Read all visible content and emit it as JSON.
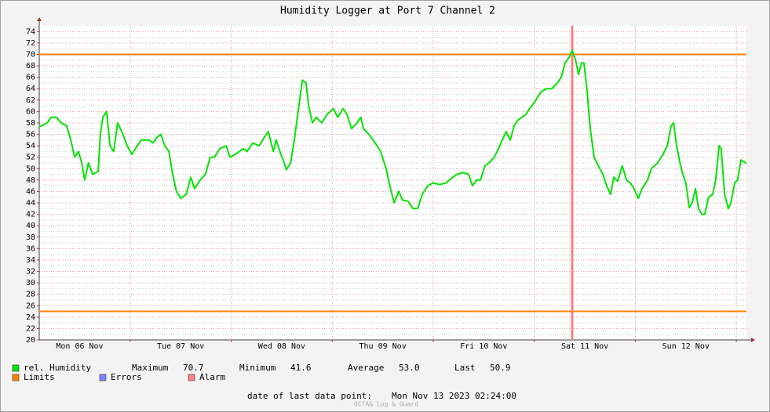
{
  "chart_data": {
    "type": "line",
    "title": "Humidity Logger at Port 7 Channel 2",
    "x": [
      0,
      1.9,
      2.8,
      4.1,
      5.2,
      6.5,
      7.5,
      8.4,
      9.3,
      10.1,
      10.8,
      11.7,
      12.7,
      14.0,
      14.5,
      15.1,
      16.0,
      16.8,
      17.7,
      18.6,
      19.6,
      20.9,
      22.0,
      23.3,
      24.2,
      26.1,
      27.0,
      28.0,
      28.9,
      29.8,
      30.8,
      31.7,
      32.6,
      33.6,
      34.9,
      36.0,
      36.9,
      38.2,
      39.5,
      40.6,
      41.6,
      42.9,
      44.4,
      45.3,
      46.6,
      48.5,
      49.4,
      50.7,
      52.2,
      53.5,
      54.4,
      55.6,
      56.3,
      57.4,
      58.2,
      58.7,
      59.7,
      60.6,
      61.5,
      62.5,
      63.4,
      64.0,
      64.9,
      65.8,
      67.1,
      68.4,
      69.9,
      70.9,
      72.2,
      73.1,
      74.2,
      75.5,
      76.4,
      77.0,
      78.3,
      79.8,
      81.1,
      82.4,
      83.3,
      84.3,
      85.4,
      86.3,
      87.6,
      88.8,
      89.9,
      91.0,
      92.3,
      93.6,
      95.1,
      96.6,
      97.9,
      99.2,
      100.7,
      102.0,
      102.9,
      103.9,
      104.8,
      105.9,
      106.8,
      108.1,
      109.1,
      110.0,
      110.9,
      111.9,
      112.8,
      113.7,
      114.7,
      115.6,
      116.5,
      117.5,
      118.4,
      119.3,
      120.5,
      121.8,
      123.1,
      124.0,
      124.9,
      125.9,
      126.6,
      127.4,
      128.1,
      128.8,
      129.4,
      130.1,
      130.9,
      131.8,
      132.8,
      133.9,
      134.8,
      135.7,
      136.5,
      137.4,
      138.5,
      139.5,
      140.4,
      141.3,
      142.3,
      143.2,
      144.5,
      145.4,
      146.9,
      148.2,
      149.2,
      150.1,
      150.7,
      151.4,
      152.2,
      152.9,
      153.6,
      154.4,
      155.1,
      155.9,
      156.6,
      157.4,
      158.1,
      159.0,
      160.0,
      160.7,
      161.5,
      162.0,
      162.8,
      163.7,
      164.3,
      165.2,
      165.9,
      166.7,
      167.4,
      168.0
    ],
    "series": [
      {
        "name": "rel. Humidity",
        "color": "#00e600",
        "values": [
          57.3,
          58,
          59,
          59,
          58,
          57.5,
          55,
          52,
          53,
          51,
          48,
          51,
          49,
          49.5,
          56,
          59,
          60,
          54,
          53,
          58,
          56.5,
          54,
          52.5,
          54,
          55,
          55,
          54.5,
          55.5,
          56,
          54,
          53,
          49,
          46,
          44.8,
          45.5,
          48.5,
          46.5,
          48,
          49,
          52,
          52,
          53.5,
          54,
          52,
          52.5,
          53.5,
          53,
          54.5,
          54,
          55.5,
          56.5,
          53,
          55,
          52.5,
          51,
          49.8,
          51,
          55,
          60,
          65.5,
          65,
          61,
          58,
          59,
          58,
          59.5,
          60.5,
          59,
          60.5,
          59.5,
          57,
          58,
          59,
          57,
          56,
          54.5,
          53,
          50,
          47,
          44,
          46,
          44.5,
          44.3,
          43,
          43,
          45.5,
          47,
          47.5,
          47.2,
          47.5,
          48.3,
          49,
          49.3,
          49,
          47,
          48,
          48,
          50.5,
          51,
          52,
          53.5,
          55,
          56.5,
          55,
          57.5,
          58.5,
          59,
          59.5,
          60.5,
          61.5,
          62.5,
          63.5,
          64,
          64,
          65,
          66,
          68.5,
          69.5,
          70.7,
          69,
          66.5,
          68.5,
          68.5,
          64,
          57,
          52,
          50.5,
          49,
          47,
          45.5,
          48.5,
          47.8,
          50.5,
          48,
          47.5,
          46.5,
          44.8,
          46.5,
          48,
          50,
          51,
          52.5,
          54,
          57.5,
          58,
          54,
          51,
          49,
          47.5,
          43.2,
          44,
          46.5,
          43,
          42,
          42,
          45,
          45.5,
          48,
          54,
          53.5,
          45.5,
          43,
          44,
          47.5,
          48,
          51.5,
          51.2,
          50.9
        ]
      }
    ],
    "overlays": [
      {
        "name": "Limits",
        "color": "#ff7f00",
        "values": [
          70,
          25
        ]
      },
      {
        "name": "Errors",
        "color": "#7f7fff"
      },
      {
        "name": "Alarm",
        "color": "#ff7f7f",
        "x": [
          126.6
        ]
      }
    ],
    "xlim": [
      0,
      168
    ],
    "xticks": [
      {
        "value": 9.6,
        "label": "Mon 06 Nov"
      },
      {
        "value": 33.6,
        "label": "Tue 07 Nov"
      },
      {
        "value": 57.6,
        "label": "Wed 08 Nov"
      },
      {
        "value": 81.6,
        "label": "Thu 09 Nov"
      },
      {
        "value": 105.6,
        "label": "Fri 10 Nov"
      },
      {
        "value": 129.6,
        "label": "Sat 11 Nov"
      },
      {
        "value": 153.6,
        "label": "Sun 12 Nov"
      }
    ],
    "ylim": [
      20,
      75
    ],
    "yticks": [
      20,
      22,
      24,
      26,
      28,
      30,
      32,
      34,
      36,
      38,
      40,
      42,
      44,
      46,
      48,
      50,
      52,
      54,
      56,
      58,
      60,
      62,
      64,
      66,
      68,
      70,
      72,
      74
    ],
    "grid": true,
    "stats": [
      {
        "label": "Maximum",
        "value": 70.7
      },
      {
        "label": "Minimum",
        "value": 41.6
      },
      {
        "label": "Average",
        "value": 53,
        "value_label": "53.0"
      },
      {
        "label": "Last",
        "value": 50.9
      }
    ],
    "footer": {
      "label": "date of last data point:",
      "value": "Mon Nov 13 2023 02:24:00"
    },
    "watermark": "OCTA& Log & Guard"
  }
}
